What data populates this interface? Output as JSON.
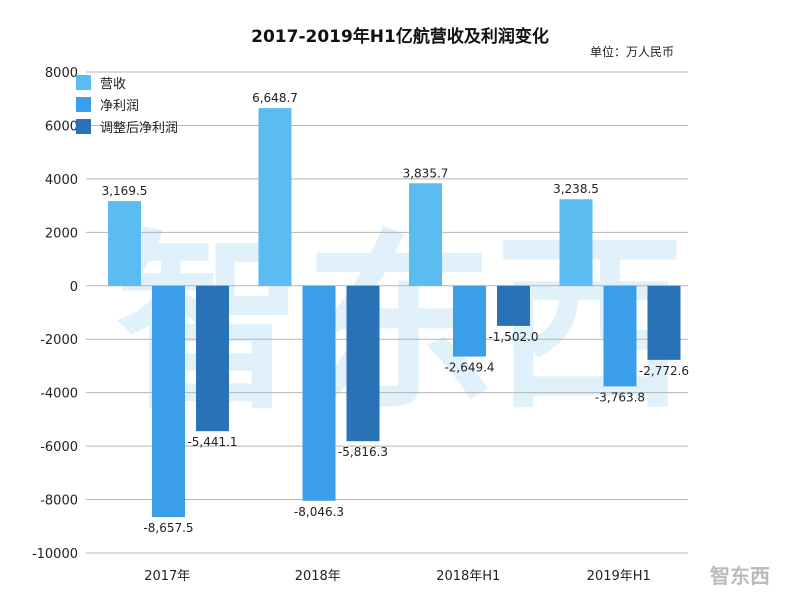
{
  "chart_data": {
    "type": "bar",
    "title": "2017-2019年H1亿航营收及利润变化",
    "unit": "单位：万人民币",
    "categories": [
      "2017年",
      "2018年",
      "2018年H1",
      "2019年H1"
    ],
    "series": [
      {
        "name": "营收",
        "color": "#5bbcf2",
        "values": [
          3169.5,
          6648.7,
          3835.7,
          3238.5
        ],
        "labels": [
          "3,169.5",
          "6,648.7",
          "3,835.7",
          "3,238.5"
        ]
      },
      {
        "name": "净利润",
        "color": "#3a9ee8",
        "values": [
          -8657.5,
          -8046.3,
          -2649.4,
          -3763.8
        ],
        "labels": [
          "-8,657.5",
          "-8,046.3",
          "-2,649.4",
          "-3,763.8"
        ]
      },
      {
        "name": "调整后净利润",
        "color": "#2a72b8",
        "values": [
          -5441.1,
          -5816.3,
          -1502.0,
          -2772.6
        ],
        "labels": [
          "-5,441.1",
          "-5,816.3",
          "-1,502.0",
          "-2,772.6"
        ]
      }
    ],
    "ylim": [
      -10000,
      8000
    ],
    "yticks": [
      "8000",
      "6000",
      "4000",
      "2000",
      "0",
      "-2000",
      "-4000",
      "-6000",
      "-8000",
      "-10000"
    ],
    "grid": true,
    "legend": "top-left"
  },
  "watermark": "智东西",
  "logo": "智东西"
}
